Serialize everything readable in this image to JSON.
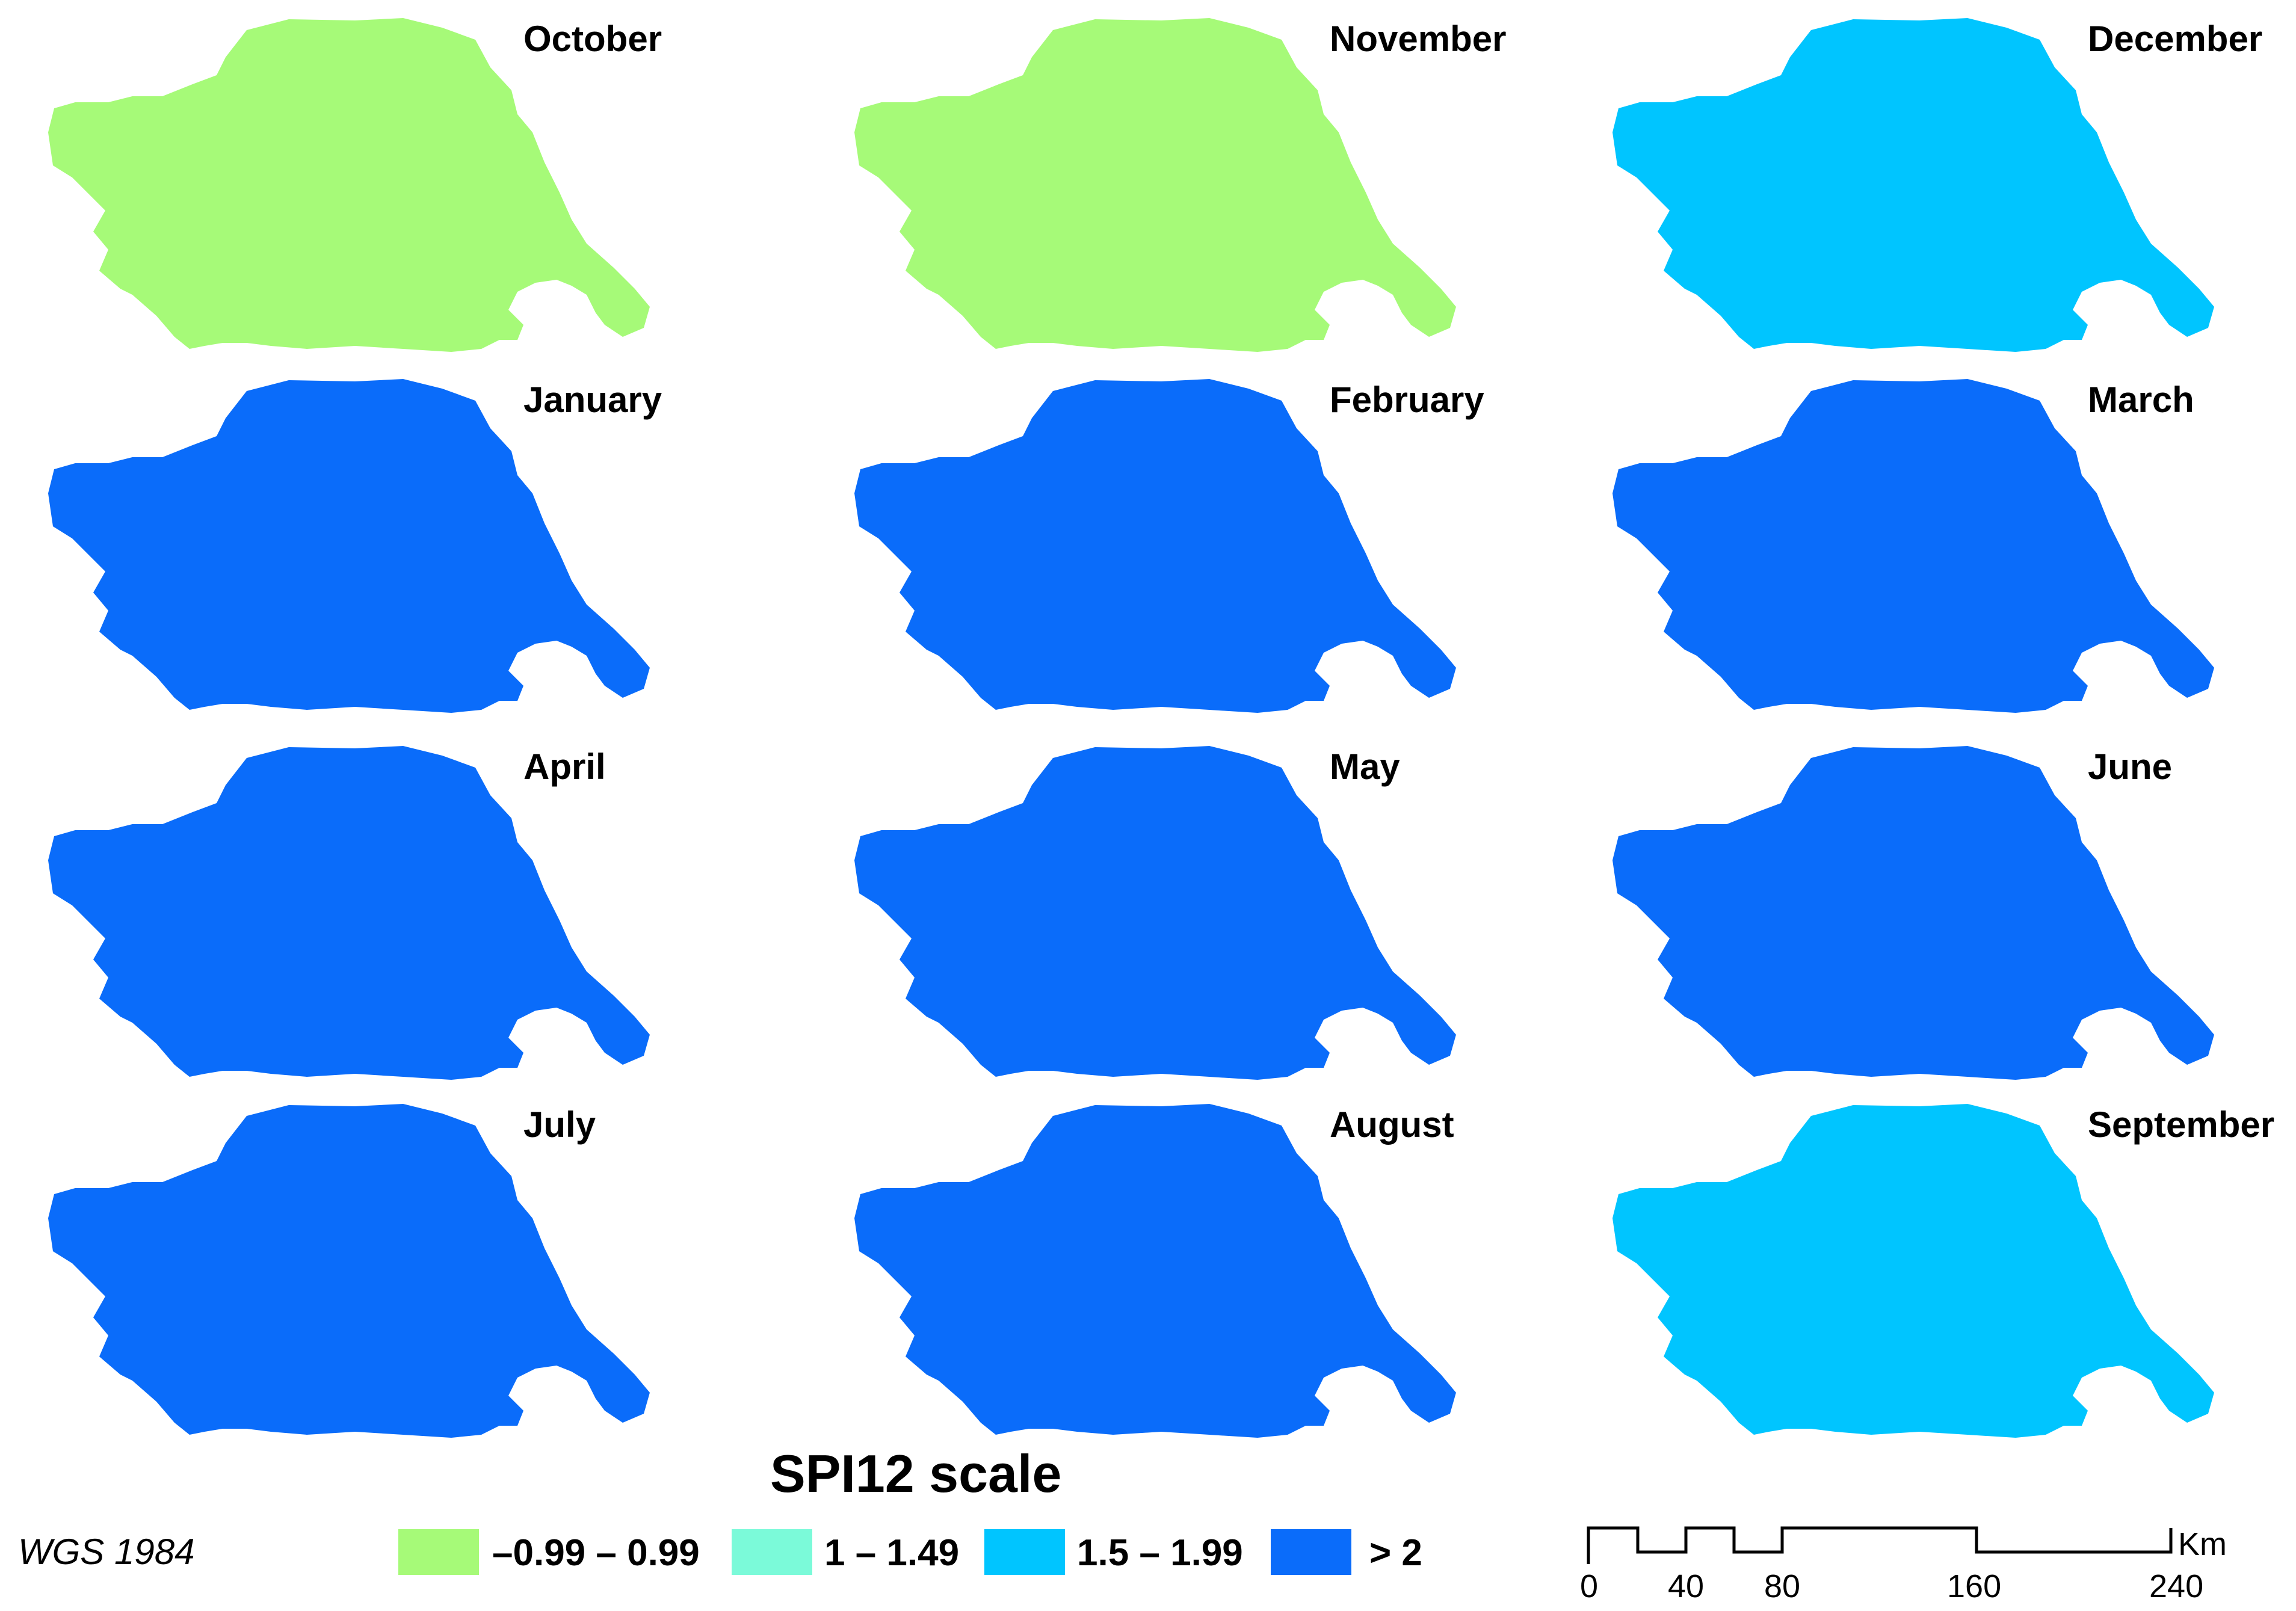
{
  "legend": {
    "title": "SPI12 scale",
    "classes": [
      {
        "label": "–0.99 – 0.99",
        "color": "#a6fa78"
      },
      {
        "label": "1 – 1.49",
        "color": "#7bfad9"
      },
      {
        "label": "1.5 – 1.99",
        "color": "#00c5ff"
      },
      {
        "label": "> 2",
        "color": "#0a6cfa"
      }
    ]
  },
  "crs": "WGS 1984",
  "scalebar": {
    "unit": "Km",
    "ticks": [
      "0",
      "40",
      "80",
      "160",
      "240"
    ]
  },
  "maps": [
    {
      "month": "October",
      "dominant_class": "–0.99 – 0.99"
    },
    {
      "month": "November",
      "dominant_class": "–0.99 – 0.99"
    },
    {
      "month": "December",
      "dominant_class": "1.5 – 1.99"
    },
    {
      "month": "January",
      "dominant_class": "> 2"
    },
    {
      "month": "February",
      "dominant_class": "> 2"
    },
    {
      "month": "March",
      "dominant_class": "> 2"
    },
    {
      "month": "April",
      "dominant_class": "> 2"
    },
    {
      "month": "May",
      "dominant_class": "> 2"
    },
    {
      "month": "June",
      "dominant_class": "> 2"
    },
    {
      "month": "July",
      "dominant_class": "> 2"
    },
    {
      "month": "August",
      "dominant_class": "> 2"
    },
    {
      "month": "September",
      "dominant_class": "1.5 – 1.99"
    }
  ]
}
